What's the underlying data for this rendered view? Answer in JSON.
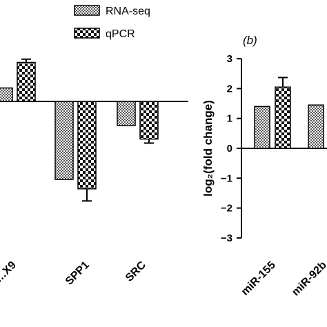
{
  "colors": {
    "bar_stroke": "#000000",
    "background": "#ffffff"
  },
  "legend": {
    "items": [
      {
        "label": "RNA-seq",
        "pattern": "fine-checker"
      },
      {
        "label": "qPCR",
        "pattern": "coarse-checker"
      }
    ]
  },
  "chart_data": [
    {
      "type": "bar",
      "panel": "a",
      "categories": [
        "…X9",
        "SPP1",
        "SRC"
      ],
      "series": [
        {
          "name": "RNA-seq",
          "values": [
            0.5,
            -2.9,
            -0.9
          ]
        },
        {
          "name": "qPCR",
          "values": [
            1.45,
            -3.25,
            -1.4
          ],
          "errors": [
            0.12,
            0.45,
            0.15
          ]
        }
      ],
      "ylim": [
        -4.4,
        2.0
      ],
      "grid": false,
      "legend_position": "top"
    },
    {
      "type": "bar",
      "panel": "b",
      "panel_label": "(b)",
      "categories": [
        "miR-155",
        "miR-92b"
      ],
      "series": [
        {
          "name": "RNA-seq",
          "values": [
            1.4,
            1.45
          ]
        },
        {
          "name": "qPCR",
          "values": [
            2.05,
            null
          ],
          "errors": [
            0.32,
            null
          ]
        }
      ],
      "ylabel": "log₂(fold change)",
      "yticks": [
        "3",
        "2",
        "1",
        "0",
        "−1",
        "−2",
        "−3"
      ],
      "ylim": [
        -3,
        3
      ],
      "grid": false
    }
  ]
}
